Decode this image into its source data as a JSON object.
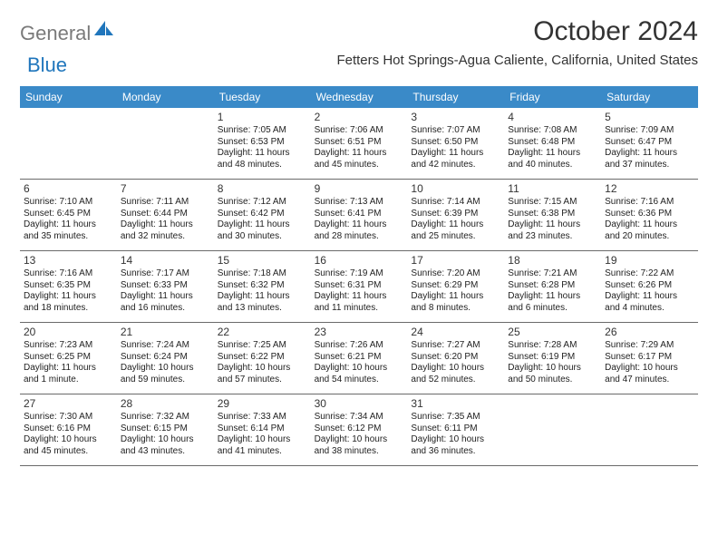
{
  "logo": {
    "gray": "General",
    "blue": "Blue"
  },
  "title": "October 2024",
  "location": "Fetters Hot Springs-Agua Caliente, California, United States",
  "colors": {
    "header_bg": "#3a8ac8",
    "header_fg": "#ffffff",
    "logo_gray": "#7a7a7a",
    "logo_blue": "#2076bc",
    "rule": "#6a6a6a",
    "text": "#333333",
    "background": "#ffffff"
  },
  "weekdays": [
    "Sunday",
    "Monday",
    "Tuesday",
    "Wednesday",
    "Thursday",
    "Friday",
    "Saturday"
  ],
  "weeks": [
    [
      null,
      null,
      {
        "n": "1",
        "sr": "Sunrise: 7:05 AM",
        "ss": "Sunset: 6:53 PM",
        "dl1": "Daylight: 11 hours",
        "dl2": "and 48 minutes."
      },
      {
        "n": "2",
        "sr": "Sunrise: 7:06 AM",
        "ss": "Sunset: 6:51 PM",
        "dl1": "Daylight: 11 hours",
        "dl2": "and 45 minutes."
      },
      {
        "n": "3",
        "sr": "Sunrise: 7:07 AM",
        "ss": "Sunset: 6:50 PM",
        "dl1": "Daylight: 11 hours",
        "dl2": "and 42 minutes."
      },
      {
        "n": "4",
        "sr": "Sunrise: 7:08 AM",
        "ss": "Sunset: 6:48 PM",
        "dl1": "Daylight: 11 hours",
        "dl2": "and 40 minutes."
      },
      {
        "n": "5",
        "sr": "Sunrise: 7:09 AM",
        "ss": "Sunset: 6:47 PM",
        "dl1": "Daylight: 11 hours",
        "dl2": "and 37 minutes."
      }
    ],
    [
      {
        "n": "6",
        "sr": "Sunrise: 7:10 AM",
        "ss": "Sunset: 6:45 PM",
        "dl1": "Daylight: 11 hours",
        "dl2": "and 35 minutes."
      },
      {
        "n": "7",
        "sr": "Sunrise: 7:11 AM",
        "ss": "Sunset: 6:44 PM",
        "dl1": "Daylight: 11 hours",
        "dl2": "and 32 minutes."
      },
      {
        "n": "8",
        "sr": "Sunrise: 7:12 AM",
        "ss": "Sunset: 6:42 PM",
        "dl1": "Daylight: 11 hours",
        "dl2": "and 30 minutes."
      },
      {
        "n": "9",
        "sr": "Sunrise: 7:13 AM",
        "ss": "Sunset: 6:41 PM",
        "dl1": "Daylight: 11 hours",
        "dl2": "and 28 minutes."
      },
      {
        "n": "10",
        "sr": "Sunrise: 7:14 AM",
        "ss": "Sunset: 6:39 PM",
        "dl1": "Daylight: 11 hours",
        "dl2": "and 25 minutes."
      },
      {
        "n": "11",
        "sr": "Sunrise: 7:15 AM",
        "ss": "Sunset: 6:38 PM",
        "dl1": "Daylight: 11 hours",
        "dl2": "and 23 minutes."
      },
      {
        "n": "12",
        "sr": "Sunrise: 7:16 AM",
        "ss": "Sunset: 6:36 PM",
        "dl1": "Daylight: 11 hours",
        "dl2": "and 20 minutes."
      }
    ],
    [
      {
        "n": "13",
        "sr": "Sunrise: 7:16 AM",
        "ss": "Sunset: 6:35 PM",
        "dl1": "Daylight: 11 hours",
        "dl2": "and 18 minutes."
      },
      {
        "n": "14",
        "sr": "Sunrise: 7:17 AM",
        "ss": "Sunset: 6:33 PM",
        "dl1": "Daylight: 11 hours",
        "dl2": "and 16 minutes."
      },
      {
        "n": "15",
        "sr": "Sunrise: 7:18 AM",
        "ss": "Sunset: 6:32 PM",
        "dl1": "Daylight: 11 hours",
        "dl2": "and 13 minutes."
      },
      {
        "n": "16",
        "sr": "Sunrise: 7:19 AM",
        "ss": "Sunset: 6:31 PM",
        "dl1": "Daylight: 11 hours",
        "dl2": "and 11 minutes."
      },
      {
        "n": "17",
        "sr": "Sunrise: 7:20 AM",
        "ss": "Sunset: 6:29 PM",
        "dl1": "Daylight: 11 hours",
        "dl2": "and 8 minutes."
      },
      {
        "n": "18",
        "sr": "Sunrise: 7:21 AM",
        "ss": "Sunset: 6:28 PM",
        "dl1": "Daylight: 11 hours",
        "dl2": "and 6 minutes."
      },
      {
        "n": "19",
        "sr": "Sunrise: 7:22 AM",
        "ss": "Sunset: 6:26 PM",
        "dl1": "Daylight: 11 hours",
        "dl2": "and 4 minutes."
      }
    ],
    [
      {
        "n": "20",
        "sr": "Sunrise: 7:23 AM",
        "ss": "Sunset: 6:25 PM",
        "dl1": "Daylight: 11 hours",
        "dl2": "and 1 minute."
      },
      {
        "n": "21",
        "sr": "Sunrise: 7:24 AM",
        "ss": "Sunset: 6:24 PM",
        "dl1": "Daylight: 10 hours",
        "dl2": "and 59 minutes."
      },
      {
        "n": "22",
        "sr": "Sunrise: 7:25 AM",
        "ss": "Sunset: 6:22 PM",
        "dl1": "Daylight: 10 hours",
        "dl2": "and 57 minutes."
      },
      {
        "n": "23",
        "sr": "Sunrise: 7:26 AM",
        "ss": "Sunset: 6:21 PM",
        "dl1": "Daylight: 10 hours",
        "dl2": "and 54 minutes."
      },
      {
        "n": "24",
        "sr": "Sunrise: 7:27 AM",
        "ss": "Sunset: 6:20 PM",
        "dl1": "Daylight: 10 hours",
        "dl2": "and 52 minutes."
      },
      {
        "n": "25",
        "sr": "Sunrise: 7:28 AM",
        "ss": "Sunset: 6:19 PM",
        "dl1": "Daylight: 10 hours",
        "dl2": "and 50 minutes."
      },
      {
        "n": "26",
        "sr": "Sunrise: 7:29 AM",
        "ss": "Sunset: 6:17 PM",
        "dl1": "Daylight: 10 hours",
        "dl2": "and 47 minutes."
      }
    ],
    [
      {
        "n": "27",
        "sr": "Sunrise: 7:30 AM",
        "ss": "Sunset: 6:16 PM",
        "dl1": "Daylight: 10 hours",
        "dl2": "and 45 minutes."
      },
      {
        "n": "28",
        "sr": "Sunrise: 7:32 AM",
        "ss": "Sunset: 6:15 PM",
        "dl1": "Daylight: 10 hours",
        "dl2": "and 43 minutes."
      },
      {
        "n": "29",
        "sr": "Sunrise: 7:33 AM",
        "ss": "Sunset: 6:14 PM",
        "dl1": "Daylight: 10 hours",
        "dl2": "and 41 minutes."
      },
      {
        "n": "30",
        "sr": "Sunrise: 7:34 AM",
        "ss": "Sunset: 6:12 PM",
        "dl1": "Daylight: 10 hours",
        "dl2": "and 38 minutes."
      },
      {
        "n": "31",
        "sr": "Sunrise: 7:35 AM",
        "ss": "Sunset: 6:11 PM",
        "dl1": "Daylight: 10 hours",
        "dl2": "and 36 minutes."
      },
      null,
      null
    ]
  ]
}
